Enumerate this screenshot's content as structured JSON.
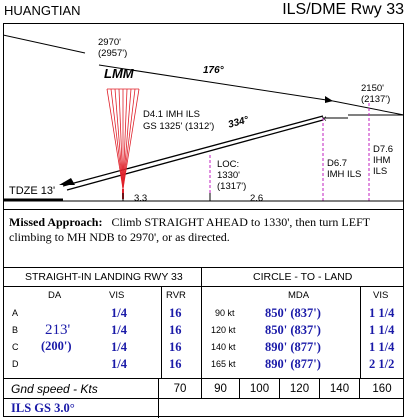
{
  "header": {
    "airport": "HUANGTIAN",
    "procedure": "ILS/DME Rwy 33"
  },
  "profile": {
    "fix_top_alt": "2970'",
    "fix_top_alt_msl": "(2957')",
    "course_176": "176°",
    "lmm": "LMM",
    "ils_fix": "D4.1 IMH ILS",
    "ils_gs": "GS 1325' (1312')",
    "course_334": "334°",
    "right_alt": "2150'",
    "right_alt_msl": "(2137')",
    "loc_label": "LOC:",
    "loc_alt": "1330'",
    "loc_alt_msl": "(1317')",
    "d67": "D6.7",
    "d67_ils": "IMH ILS",
    "d76": "D7.6",
    "d76_ihm": "IHM",
    "d76_ils": "ILS",
    "tdze": "TDZE 13'",
    "dist_33": "3.3",
    "dist_26": "2.6"
  },
  "missed": {
    "label": "Missed Approach:",
    "text1": "Climb STRAIGHT AHEAD to 1330', then turn LEFT",
    "text2": "climbing to MH NDB to 2970', or as directed."
  },
  "mins": {
    "straight_title": "STRAIGHT-IN LANDING RWY 33",
    "circle_title": "CIRCLE - TO - LAND",
    "headers": {
      "da": "DA",
      "vis": "VIS",
      "rvr": "RVR",
      "mda": "MDA",
      "cvis": "VIS"
    },
    "da_value": "213'",
    "da_height": "(200')",
    "rows": [
      {
        "cat": "A",
        "vis": "1/4",
        "rvr": "16",
        "kt": "90 kt",
        "mda": "850'  (837')",
        "cvis": "1 1/4"
      },
      {
        "cat": "B",
        "vis": "1/4",
        "rvr": "16",
        "kt": "120 kt",
        "mda": "850'  (837')",
        "cvis": "1 1/4"
      },
      {
        "cat": "C",
        "vis": "1/4",
        "rvr": "16",
        "kt": "140 kt",
        "mda": "890'  (877')",
        "cvis": "1 1/4"
      },
      {
        "cat": "D",
        "vis": "1/4",
        "rvr": "16",
        "kt": "165 kt",
        "mda": "890'  (877')",
        "cvis": "2 1/2"
      }
    ]
  },
  "gnd": {
    "label": "Gnd speed - Kts",
    "speeds": [
      "70",
      "90",
      "100",
      "120",
      "140",
      "160"
    ]
  },
  "gs": {
    "label": "ILS GS 3.0°"
  }
}
